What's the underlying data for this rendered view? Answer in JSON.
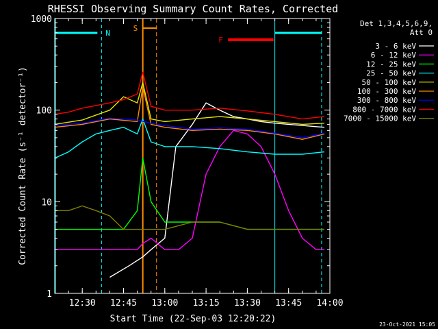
{
  "chart_data": {
    "type": "line",
    "title": "RHESSI Observing Summary Count Rates, Corrected",
    "xlabel": "Start Time (22-Sep-03 12:20:22)",
    "ylabel": "Corrected Count Rate (s⁻¹ detector⁻¹)",
    "y_scale": "log",
    "ylim": [
      1,
      1000
    ],
    "xlim": [
      "12:20",
      "14:00"
    ],
    "x_ticks": [
      "12:30",
      "12:45",
      "13:00",
      "13:15",
      "13:30",
      "13:45",
      "14:00"
    ],
    "y_ticks": [
      "1",
      "10",
      "100",
      "1000"
    ],
    "timestamp": "23-Oct-2021 15:05",
    "legend": {
      "header": [
        "Det 1,3,4,5,6,9,",
        "Att 0"
      ],
      "placement": "top-right-outside"
    },
    "markers": [
      {
        "label": "N",
        "color": "#00ffff",
        "x": [
          "12:20",
          "12:37"
        ],
        "dashed_line_x": "12:37",
        "solid_line_x": [
          "12:20",
          "13:40",
          "13:57"
        ]
      },
      {
        "label": "S",
        "color": "#ff8c00",
        "x": [
          "12:52",
          "12:56"
        ],
        "dashed_line_x": "12:56",
        "solid_line_x": [
          "12:52"
        ]
      },
      {
        "label": "F",
        "color": "#ff0000",
        "x": [
          "13:23",
          "13:40"
        ]
      }
    ],
    "series": [
      {
        "name": "3 - 6 keV",
        "color": "#ffffff",
        "x": [
          "12:40",
          "12:47",
          "12:52",
          "12:55",
          "13:00",
          "13:04",
          "13:10",
          "13:15",
          "13:20",
          "13:25",
          "13:30",
          "13:35",
          "13:40",
          "13:45",
          "13:50",
          "13:55",
          "13:58"
        ],
        "values": [
          1.5,
          2,
          2.5,
          3,
          4,
          40,
          70,
          120,
          100,
          85,
          80,
          75,
          72,
          70,
          68,
          66,
          65
        ]
      },
      {
        "name": "6 - 12 keV",
        "color": "#ff00ff",
        "x": [
          "12:20",
          "12:35",
          "12:45",
          "12:50",
          "12:52",
          "12:55",
          "13:00",
          "13:05",
          "13:10",
          "13:15",
          "13:20",
          "13:25",
          "13:30",
          "13:35",
          "13:40",
          "13:45",
          "13:50",
          "13:55",
          "13:58"
        ],
        "values": [
          3,
          3,
          3,
          3,
          3.5,
          4,
          3,
          3,
          4,
          20,
          40,
          60,
          55,
          40,
          20,
          8,
          4,
          3,
          3
        ]
      },
      {
        "name": "12 - 25 keV",
        "color": "#00ff00",
        "x": [
          "12:20",
          "12:30",
          "12:40",
          "12:45",
          "12:50",
          "12:52",
          "12:55",
          "13:00",
          "13:10",
          "13:20",
          "13:30",
          "13:40",
          "13:50",
          "13:58"
        ],
        "values": [
          5,
          5,
          5,
          5,
          8,
          30,
          10,
          6,
          6,
          6,
          5,
          5,
          5,
          5
        ]
      },
      {
        "name": "25 - 50 keV",
        "color": "#00ffff",
        "x": [
          "12:20",
          "12:25",
          "12:30",
          "12:35",
          "12:40",
          "12:45",
          "12:50",
          "12:52",
          "12:55",
          "13:00",
          "13:10",
          "13:20",
          "13:30",
          "13:40",
          "13:50",
          "13:58"
        ],
        "values": [
          30,
          35,
          45,
          55,
          60,
          65,
          55,
          80,
          45,
          40,
          40,
          38,
          35,
          33,
          33,
          35
        ]
      },
      {
        "name": "50 - 100 keV",
        "color": "#e6e600",
        "x": [
          "12:20",
          "12:30",
          "12:40",
          "12:45",
          "12:50",
          "12:52",
          "12:55",
          "13:00",
          "13:10",
          "13:20",
          "13:30",
          "13:40",
          "13:50",
          "13:58"
        ],
        "values": [
          70,
          78,
          100,
          140,
          120,
          200,
          80,
          75,
          80,
          85,
          80,
          75,
          70,
          72
        ]
      },
      {
        "name": "100 - 300 keV",
        "color": "#ff8c00",
        "x": [
          "12:20",
          "12:30",
          "12:40",
          "12:50",
          "12:52",
          "12:55",
          "13:00",
          "13:10",
          "13:20",
          "13:30",
          "13:40",
          "13:50",
          "13:58"
        ],
        "values": [
          65,
          70,
          80,
          75,
          180,
          70,
          65,
          60,
          62,
          60,
          55,
          48,
          55
        ]
      },
      {
        "name": "300 - 800 keV",
        "color": "#0000ff",
        "x": [
          "12:20",
          "12:30",
          "12:40",
          "12:50",
          "12:55",
          "13:00",
          "13:10",
          "13:20",
          "13:30",
          "13:40",
          "13:50",
          "13:58"
        ],
        "values": [
          68,
          72,
          82,
          78,
          72,
          68,
          62,
          64,
          62,
          56,
          50,
          56
        ]
      },
      {
        "name": "800 - 7000 keV",
        "color": "#ff0000",
        "x": [
          "12:20",
          "12:25",
          "12:30",
          "12:40",
          "12:45",
          "12:50",
          "12:52",
          "12:55",
          "13:00",
          "13:10",
          "13:20",
          "13:30",
          "13:40",
          "13:50",
          "13:58"
        ],
        "values": [
          90,
          95,
          105,
          120,
          130,
          150,
          260,
          110,
          100,
          100,
          105,
          98,
          90,
          80,
          85
        ]
      },
      {
        "name": "7000 - 15000 keV",
        "color": "#808000",
        "x": [
          "12:20",
          "12:25",
          "12:30",
          "12:35",
          "12:40",
          "12:45",
          "12:50",
          "12:55",
          "13:00",
          "13:10",
          "13:20",
          "13:30",
          "13:40",
          "13:50",
          "13:58"
        ],
        "values": [
          8,
          8,
          9,
          8,
          7,
          5,
          5,
          5,
          5,
          6,
          6,
          5,
          5,
          5,
          5
        ]
      }
    ]
  }
}
